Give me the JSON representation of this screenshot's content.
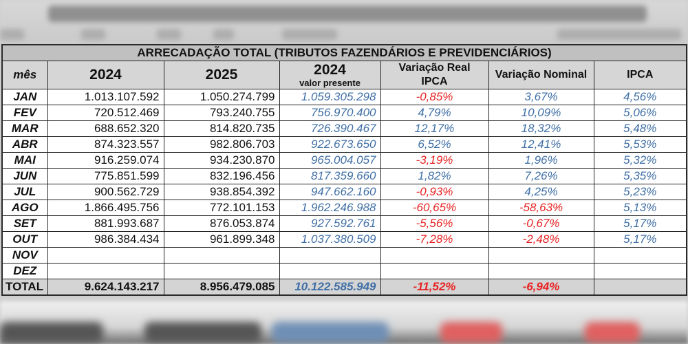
{
  "title": "ARRECADAÇÃO TOTAL (TRIBUTOS FAZENDÁRIOS E PREVIDENCIÁRIOS)",
  "headers": {
    "month": "mês",
    "y2024": "2024",
    "y2025": "2025",
    "pv_year": "2024",
    "pv_sub": "valor presente",
    "var_real_line1": "Variação Real",
    "var_real_line2": "IPCA",
    "var_nominal": "Variação Nominal",
    "ipca": "IPCA"
  },
  "colors": {
    "positive": "#3f6fa6",
    "negative": "#e82222",
    "header_bg": "#d6d6d6",
    "title_bg": "#c0c0c0"
  },
  "rows": [
    {
      "month": "JAN",
      "y2024": "1.013.107.592",
      "y2025": "1.050.274.799",
      "pv": "1.059.305.298",
      "var_real": "-0,85%",
      "var_nominal": "3,67%",
      "ipca": "4,56%"
    },
    {
      "month": "FEV",
      "y2024": "720.512.469",
      "y2025": "793.240.755",
      "pv": "756.970.400",
      "var_real": "4,79%",
      "var_nominal": "10,09%",
      "ipca": "5,06%"
    },
    {
      "month": "MAR",
      "y2024": "688.652.320",
      "y2025": "814.820.735",
      "pv": "726.390.467",
      "var_real": "12,17%",
      "var_nominal": "18,32%",
      "ipca": "5,48%"
    },
    {
      "month": "ABR",
      "y2024": "874.323.557",
      "y2025": "982.806.703",
      "pv": "922.673.650",
      "var_real": "6,52%",
      "var_nominal": "12,41%",
      "ipca": "5,53%"
    },
    {
      "month": "MAI",
      "y2024": "916.259.074",
      "y2025": "934.230.870",
      "pv": "965.004.057",
      "var_real": "-3,19%",
      "var_nominal": "1,96%",
      "ipca": "5,32%"
    },
    {
      "month": "JUN",
      "y2024": "775.851.599",
      "y2025": "832.196.456",
      "pv": "817.359.660",
      "var_real": "1,82%",
      "var_nominal": "7,26%",
      "ipca": "5,35%"
    },
    {
      "month": "JUL",
      "y2024": "900.562.729",
      "y2025": "938.854.392",
      "pv": "947.662.160",
      "var_real": "-0,93%",
      "var_nominal": "4,25%",
      "ipca": "5,23%"
    },
    {
      "month": "AGO",
      "y2024": "1.866.495.756",
      "y2025": "772.101.153",
      "pv": "1.962.246.988",
      "var_real": "-60,65%",
      "var_nominal": "-58,63%",
      "ipca": "5,13%"
    },
    {
      "month": "SET",
      "y2024": "881.993.687",
      "y2025": "876.053.874",
      "pv": "927.592.761",
      "var_real": "-5,56%",
      "var_nominal": "-0,67%",
      "ipca": "5,17%"
    },
    {
      "month": "OUT",
      "y2024": "986.384.434",
      "y2025": "961.899.348",
      "pv": "1.037.380.509",
      "var_real": "-7,28%",
      "var_nominal": "-2,48%",
      "ipca": "5,17%"
    },
    {
      "month": "NOV",
      "y2024": "",
      "y2025": "",
      "pv": "",
      "var_real": "",
      "var_nominal": "",
      "ipca": ""
    },
    {
      "month": "DEZ",
      "y2024": "",
      "y2025": "",
      "pv": "",
      "var_real": "",
      "var_nominal": "",
      "ipca": ""
    }
  ],
  "total": {
    "label": "TOTAL",
    "y2024": "9.624.143.217",
    "y2025": "8.956.479.085",
    "pv": "10.122.585.949",
    "var_real": "-11,52%",
    "var_nominal": "-6,94%",
    "ipca": ""
  }
}
